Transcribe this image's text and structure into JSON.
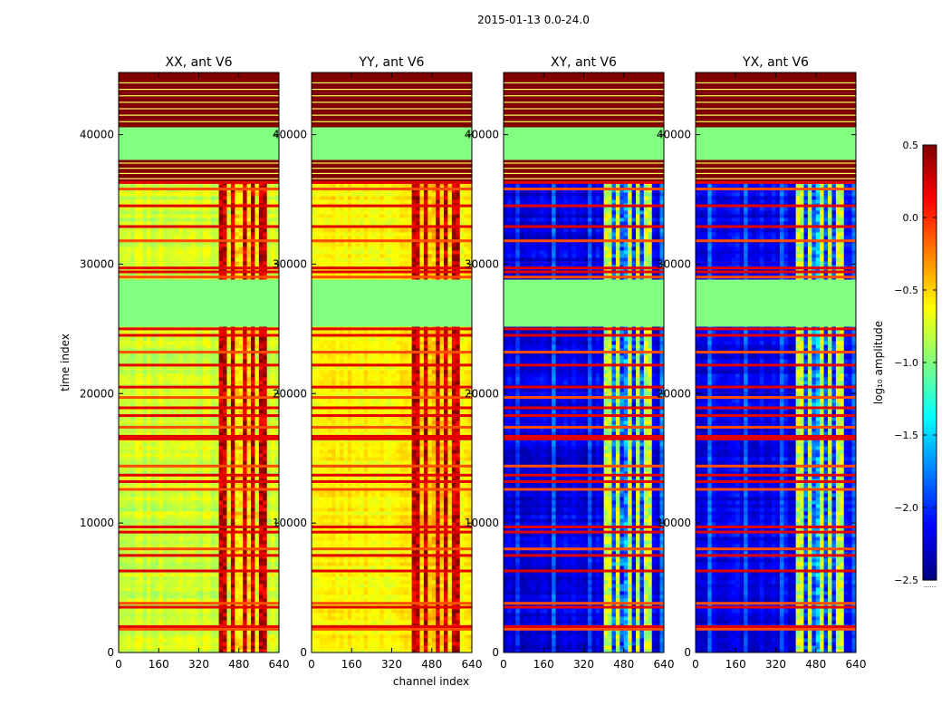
{
  "chart_data": {
    "type": "heatmap",
    "suptitle": "2015-01-13 0.0-24.0",
    "xlabel": "channel index",
    "ylabel": "time index",
    "xlim": [
      0,
      640
    ],
    "ylim": [
      0,
      44800
    ],
    "xticks": [
      0,
      160,
      320,
      480,
      640
    ],
    "xtick_labels": [
      "0",
      "160",
      "320",
      "480",
      "640"
    ],
    "yticks": [
      0,
      10000,
      20000,
      30000,
      40000
    ],
    "ytick_labels": [
      "0",
      "10000",
      "20000",
      "30000",
      "40000"
    ],
    "colormap": "jet",
    "colorbar": {
      "label": "log₁₀ amplitude",
      "range": [
        -2.5,
        0.5
      ],
      "ticks": [
        0.5,
        0.0,
        -0.5,
        -1.0,
        -1.5,
        -2.0,
        -2.5
      ],
      "tick_labels": [
        "0.5",
        "0.0",
        "−0.5",
        "−1.0",
        "−1.5",
        "−2.0",
        "−2.5"
      ],
      "under_note": "......"
    },
    "panels": [
      {
        "title": "XX, ant V6",
        "kind": "parallel",
        "base_value": -0.75,
        "texture": 0.18,
        "seed": 11
      },
      {
        "title": "YY, ant V6",
        "kind": "parallel",
        "base_value": -0.6,
        "texture": 0.15,
        "seed": 23
      },
      {
        "title": "XY, ant V6",
        "kind": "cross",
        "base_value": -2.2,
        "texture": 0.22,
        "seed": 37
      },
      {
        "title": "YX, ant V6",
        "kind": "cross",
        "base_value": -2.15,
        "texture": 0.22,
        "seed": 53
      }
    ],
    "flagged_time_ranges": [
      {
        "start": 25200,
        "end": 28800,
        "value": -1.0
      },
      {
        "start": 36300,
        "end": 38200,
        "value": 0.5
      },
      {
        "start": 38200,
        "end": 40600,
        "value": -1.0
      },
      {
        "start": 40600,
        "end": 44800,
        "value": 0.5
      }
    ],
    "rfi_time_lines": [
      1800,
      2000,
      3500,
      3800,
      6300,
      7500,
      8000,
      9300,
      9700,
      12600,
      13200,
      13700,
      14400,
      16500,
      16700,
      17400,
      18300,
      18900,
      19700,
      20500,
      22200,
      23200,
      24500,
      25000,
      29000,
      29400,
      29700,
      31800,
      32900,
      34500,
      35800,
      36300
    ],
    "rfi_channel_ranges": [
      [
        400,
        440
      ],
      [
        455,
        470
      ],
      [
        490,
        510
      ],
      [
        530,
        545
      ],
      [
        565,
        590
      ]
    ],
    "rfi_value_parallel": 0.2,
    "rfi_value_cross": -0.9
  }
}
